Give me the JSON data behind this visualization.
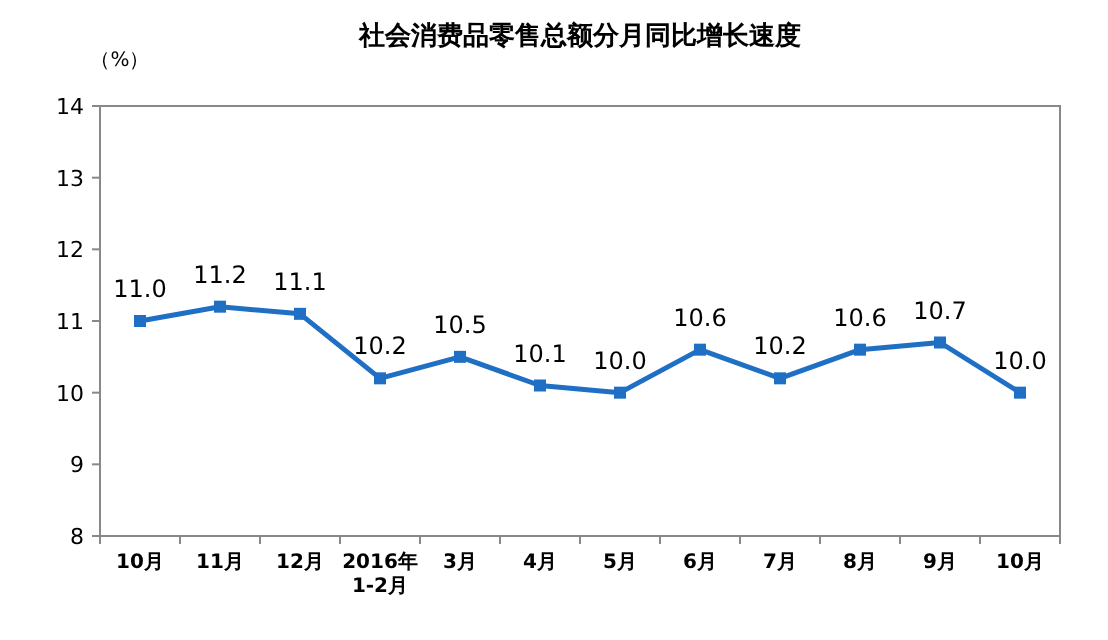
{
  "chart_data": {
    "type": "line",
    "title": "社会消费品零售总额分月同比增长速度",
    "ylabel": "（%）",
    "categories": [
      "10月",
      "11月",
      "12月",
      "2016年\n1-2月",
      "3月",
      "4月",
      "5月",
      "6月",
      "7月",
      "8月",
      "9月",
      "10月"
    ],
    "series": [
      {
        "color": "#1f6fc5",
        "values": [
          11.0,
          11.2,
          11.1,
          10.2,
          10.5,
          10.1,
          10.0,
          10.6,
          10.2,
          10.6,
          10.7,
          10.0
        ],
        "value_labels": [
          "11.0",
          "11.2",
          "11.1",
          "10.2",
          "10.5",
          "10.1",
          "10.0",
          "10.6",
          "10.2",
          "10.6",
          "10.7",
          "10.0"
        ]
      }
    ],
    "ylim": [
      8,
      14
    ],
    "yticks": [
      8,
      9,
      10,
      11,
      12,
      13,
      14
    ],
    "marker": "square"
  }
}
